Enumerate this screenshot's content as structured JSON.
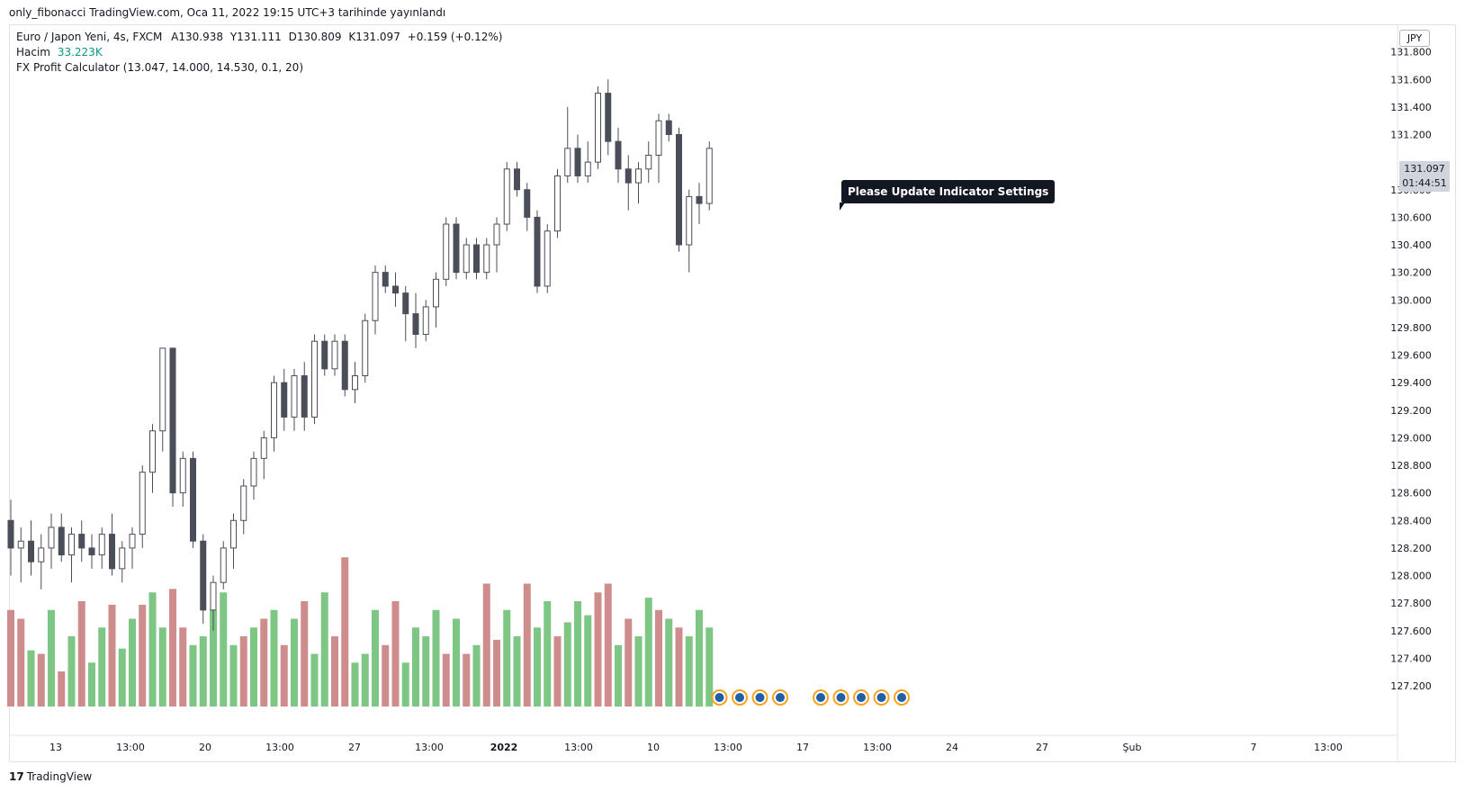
{
  "publish_line": "only_fibonacci TradingView.com, Oca 11, 2022 19:15 UTC+3 tarihinde yayınlandı",
  "legend": {
    "symbol_line": "Euro / Japon Yeni, 4s, FXCM",
    "open_label": "A",
    "open": "130.938",
    "high_label": "Y",
    "high": "131.111",
    "low_label": "D",
    "low": "130.809",
    "close_label": "K",
    "close": "131.097",
    "change": "+0.159 (+0.12%)",
    "volume_label": "Hacim",
    "volume": "33.223K",
    "indicator": "FX Profit Calculator (13.047, 14.000, 14.530, 0.1, 20)"
  },
  "currency_badge": "JPY",
  "tooltip": "Please Update Indicator Settings",
  "last_price": "131.097",
  "countdown": "01:44:51",
  "brand": "TradingView",
  "colors": {
    "up_volume": "#7ec683",
    "down_volume": "#cf8c8c",
    "candle": "#4a4e59",
    "event_fill": "#1e5fa8",
    "event_ring": "#f7a21b"
  },
  "chart_data": {
    "type": "candlestick",
    "y_ticks": [
      "131.800",
      "131.600",
      "131.400",
      "131.200",
      "130.800",
      "130.600",
      "130.400",
      "130.200",
      "130.000",
      "129.800",
      "129.600",
      "129.400",
      "129.200",
      "129.000",
      "128.800",
      "128.600",
      "128.400",
      "128.200",
      "128.000",
      "127.800",
      "127.600",
      "127.400",
      "127.200"
    ],
    "ylim": [
      127.05,
      132.0
    ],
    "x_ticks": [
      "13",
      "13:00",
      "20",
      "13:00",
      "27",
      "13:00",
      "2022",
      "13:00",
      "10",
      "13:00",
      "17",
      "13:00",
      "24",
      "27",
      "Şub",
      "7",
      "13:00"
    ],
    "candles": [
      {
        "o": 128.4,
        "h": 128.55,
        "l": 128.0,
        "c": 128.2
      },
      {
        "o": 128.2,
        "h": 128.35,
        "l": 127.95,
        "c": 128.25
      },
      {
        "o": 128.25,
        "h": 128.4,
        "l": 128.0,
        "c": 128.1
      },
      {
        "o": 128.1,
        "h": 128.3,
        "l": 127.9,
        "c": 128.2
      },
      {
        "o": 128.2,
        "h": 128.45,
        "l": 128.05,
        "c": 128.35
      },
      {
        "o": 128.35,
        "h": 128.45,
        "l": 128.1,
        "c": 128.15
      },
      {
        "o": 128.15,
        "h": 128.35,
        "l": 127.95,
        "c": 128.3
      },
      {
        "o": 128.3,
        "h": 128.4,
        "l": 128.1,
        "c": 128.2
      },
      {
        "o": 128.2,
        "h": 128.3,
        "l": 128.05,
        "c": 128.15
      },
      {
        "o": 128.15,
        "h": 128.35,
        "l": 128.05,
        "c": 128.3
      },
      {
        "o": 128.3,
        "h": 128.45,
        "l": 128.0,
        "c": 128.05
      },
      {
        "o": 128.05,
        "h": 128.25,
        "l": 127.95,
        "c": 128.2
      },
      {
        "o": 128.2,
        "h": 128.35,
        "l": 128.05,
        "c": 128.3
      },
      {
        "o": 128.3,
        "h": 128.8,
        "l": 128.2,
        "c": 128.75
      },
      {
        "o": 128.75,
        "h": 129.1,
        "l": 128.6,
        "c": 129.05
      },
      {
        "o": 129.05,
        "h": 129.65,
        "l": 128.9,
        "c": 129.65
      },
      {
        "o": 129.65,
        "h": 129.65,
        "l": 128.5,
        "c": 128.6
      },
      {
        "o": 128.6,
        "h": 128.9,
        "l": 128.5,
        "c": 128.85
      },
      {
        "o": 128.85,
        "h": 128.9,
        "l": 128.2,
        "c": 128.25
      },
      {
        "o": 128.25,
        "h": 128.3,
        "l": 127.65,
        "c": 127.75
      },
      {
        "o": 127.75,
        "h": 128.0,
        "l": 127.6,
        "c": 127.95
      },
      {
        "o": 127.95,
        "h": 128.25,
        "l": 127.9,
        "c": 128.2
      },
      {
        "o": 128.2,
        "h": 128.45,
        "l": 128.05,
        "c": 128.4
      },
      {
        "o": 128.4,
        "h": 128.7,
        "l": 128.3,
        "c": 128.65
      },
      {
        "o": 128.65,
        "h": 128.9,
        "l": 128.55,
        "c": 128.85
      },
      {
        "o": 128.85,
        "h": 129.05,
        "l": 128.7,
        "c": 129.0
      },
      {
        "o": 129.0,
        "h": 129.45,
        "l": 128.9,
        "c": 129.4
      },
      {
        "o": 129.4,
        "h": 129.5,
        "l": 129.05,
        "c": 129.15
      },
      {
        "o": 129.15,
        "h": 129.5,
        "l": 129.05,
        "c": 129.45
      },
      {
        "o": 129.45,
        "h": 129.55,
        "l": 129.05,
        "c": 129.15
      },
      {
        "o": 129.15,
        "h": 129.75,
        "l": 129.1,
        "c": 129.7
      },
      {
        "o": 129.7,
        "h": 129.75,
        "l": 129.45,
        "c": 129.5
      },
      {
        "o": 129.5,
        "h": 129.75,
        "l": 129.45,
        "c": 129.7
      },
      {
        "o": 129.7,
        "h": 129.75,
        "l": 129.3,
        "c": 129.35
      },
      {
        "o": 129.35,
        "h": 129.55,
        "l": 129.25,
        "c": 129.45
      },
      {
        "o": 129.45,
        "h": 129.9,
        "l": 129.4,
        "c": 129.85
      },
      {
        "o": 129.85,
        "h": 130.25,
        "l": 129.75,
        "c": 130.2
      },
      {
        "o": 130.2,
        "h": 130.25,
        "l": 130.05,
        "c": 130.1
      },
      {
        "o": 130.1,
        "h": 130.2,
        "l": 129.95,
        "c": 130.05
      },
      {
        "o": 130.05,
        "h": 130.1,
        "l": 129.7,
        "c": 129.9
      },
      {
        "o": 129.9,
        "h": 130.05,
        "l": 129.65,
        "c": 129.75
      },
      {
        "o": 129.75,
        "h": 130.0,
        "l": 129.7,
        "c": 129.95
      },
      {
        "o": 129.95,
        "h": 130.2,
        "l": 129.8,
        "c": 130.15
      },
      {
        "o": 130.15,
        "h": 130.6,
        "l": 130.1,
        "c": 130.55
      },
      {
        "o": 130.55,
        "h": 130.6,
        "l": 130.15,
        "c": 130.2
      },
      {
        "o": 130.2,
        "h": 130.45,
        "l": 130.15,
        "c": 130.4
      },
      {
        "o": 130.4,
        "h": 130.45,
        "l": 130.15,
        "c": 130.2
      },
      {
        "o": 130.2,
        "h": 130.45,
        "l": 130.15,
        "c": 130.4
      },
      {
        "o": 130.4,
        "h": 130.6,
        "l": 130.2,
        "c": 130.55
      },
      {
        "o": 130.55,
        "h": 131.0,
        "l": 130.5,
        "c": 130.95
      },
      {
        "o": 130.95,
        "h": 131.0,
        "l": 130.75,
        "c": 130.8
      },
      {
        "o": 130.8,
        "h": 130.85,
        "l": 130.5,
        "c": 130.6
      },
      {
        "o": 130.6,
        "h": 130.65,
        "l": 130.05,
        "c": 130.1
      },
      {
        "o": 130.1,
        "h": 130.55,
        "l": 130.05,
        "c": 130.5
      },
      {
        "o": 130.5,
        "h": 130.95,
        "l": 130.45,
        "c": 130.9
      },
      {
        "o": 130.9,
        "h": 131.4,
        "l": 130.85,
        "c": 131.1
      },
      {
        "o": 131.1,
        "h": 131.2,
        "l": 130.85,
        "c": 130.9
      },
      {
        "o": 130.9,
        "h": 131.15,
        "l": 130.85,
        "c": 131.0
      },
      {
        "o": 131.0,
        "h": 131.55,
        "l": 130.95,
        "c": 131.5
      },
      {
        "o": 131.5,
        "h": 131.6,
        "l": 131.05,
        "c": 131.15
      },
      {
        "o": 131.15,
        "h": 131.25,
        "l": 130.85,
        "c": 130.95
      },
      {
        "o": 130.95,
        "h": 131.05,
        "l": 130.65,
        "c": 130.85
      },
      {
        "o": 130.85,
        "h": 131.0,
        "l": 130.7,
        "c": 130.95
      },
      {
        "o": 130.95,
        "h": 131.15,
        "l": 130.85,
        "c": 131.05
      },
      {
        "o": 131.05,
        "h": 131.35,
        "l": 130.85,
        "c": 131.3
      },
      {
        "o": 131.3,
        "h": 131.35,
        "l": 131.15,
        "c": 131.2
      },
      {
        "o": 131.2,
        "h": 131.25,
        "l": 130.35,
        "c": 130.4
      },
      {
        "o": 130.4,
        "h": 130.8,
        "l": 130.2,
        "c": 130.75
      },
      {
        "o": 130.75,
        "h": 130.85,
        "l": 130.55,
        "c": 130.7
      },
      {
        "o": 130.7,
        "h": 131.15,
        "l": 130.65,
        "c": 131.1
      }
    ],
    "volumes": [
      {
        "v": 0.55,
        "d": 1
      },
      {
        "v": 0.5,
        "d": 1
      },
      {
        "v": 0.32,
        "d": 0
      },
      {
        "v": 0.3,
        "d": 1
      },
      {
        "v": 0.55,
        "d": 0
      },
      {
        "v": 0.2,
        "d": 1
      },
      {
        "v": 0.4,
        "d": 0
      },
      {
        "v": 0.6,
        "d": 1
      },
      {
        "v": 0.25,
        "d": 0
      },
      {
        "v": 0.45,
        "d": 0
      },
      {
        "v": 0.58,
        "d": 1
      },
      {
        "v": 0.33,
        "d": 0
      },
      {
        "v": 0.5,
        "d": 0
      },
      {
        "v": 0.58,
        "d": 1
      },
      {
        "v": 0.65,
        "d": 0
      },
      {
        "v": 0.45,
        "d": 0
      },
      {
        "v": 0.67,
        "d": 1
      },
      {
        "v": 0.45,
        "d": 1
      },
      {
        "v": 0.35,
        "d": 0
      },
      {
        "v": 0.4,
        "d": 0
      },
      {
        "v": 0.55,
        "d": 0
      },
      {
        "v": 0.65,
        "d": 0
      },
      {
        "v": 0.35,
        "d": 0
      },
      {
        "v": 0.4,
        "d": 1
      },
      {
        "v": 0.45,
        "d": 0
      },
      {
        "v": 0.5,
        "d": 1
      },
      {
        "v": 0.55,
        "d": 0
      },
      {
        "v": 0.35,
        "d": 1
      },
      {
        "v": 0.5,
        "d": 0
      },
      {
        "v": 0.6,
        "d": 1
      },
      {
        "v": 0.3,
        "d": 0
      },
      {
        "v": 0.65,
        "d": 0
      },
      {
        "v": 0.4,
        "d": 1
      },
      {
        "v": 0.85,
        "d": 1
      },
      {
        "v": 0.25,
        "d": 0
      },
      {
        "v": 0.3,
        "d": 0
      },
      {
        "v": 0.55,
        "d": 0
      },
      {
        "v": 0.35,
        "d": 1
      },
      {
        "v": 0.6,
        "d": 1
      },
      {
        "v": 0.25,
        "d": 0
      },
      {
        "v": 0.45,
        "d": 0
      },
      {
        "v": 0.4,
        "d": 0
      },
      {
        "v": 0.55,
        "d": 0
      },
      {
        "v": 0.3,
        "d": 1
      },
      {
        "v": 0.5,
        "d": 0
      },
      {
        "v": 0.3,
        "d": 1
      },
      {
        "v": 0.35,
        "d": 0
      },
      {
        "v": 0.7,
        "d": 1
      },
      {
        "v": 0.38,
        "d": 1
      },
      {
        "v": 0.55,
        "d": 0
      },
      {
        "v": 0.4,
        "d": 0
      },
      {
        "v": 0.7,
        "d": 1
      },
      {
        "v": 0.45,
        "d": 0
      },
      {
        "v": 0.6,
        "d": 0
      },
      {
        "v": 0.4,
        "d": 1
      },
      {
        "v": 0.48,
        "d": 0
      },
      {
        "v": 0.6,
        "d": 0
      },
      {
        "v": 0.52,
        "d": 0
      },
      {
        "v": 0.65,
        "d": 1
      },
      {
        "v": 0.7,
        "d": 1
      },
      {
        "v": 0.35,
        "d": 0
      },
      {
        "v": 0.5,
        "d": 1
      },
      {
        "v": 0.4,
        "d": 0
      },
      {
        "v": 0.62,
        "d": 0
      },
      {
        "v": 0.55,
        "d": 1
      },
      {
        "v": 0.5,
        "d": 0
      },
      {
        "v": 0.45,
        "d": 1
      },
      {
        "v": 0.4,
        "d": 0
      },
      {
        "v": 0.55,
        "d": 0
      },
      {
        "v": 0.45,
        "d": 0
      }
    ],
    "events": [
      {
        "x_index": 70
      },
      {
        "x_index": 72
      },
      {
        "x_index": 74
      },
      {
        "x_index": 76
      },
      {
        "x_index": 80
      },
      {
        "x_index": 82
      },
      {
        "x_index": 84
      },
      {
        "x_index": 86
      },
      {
        "x_index": 88
      }
    ]
  }
}
